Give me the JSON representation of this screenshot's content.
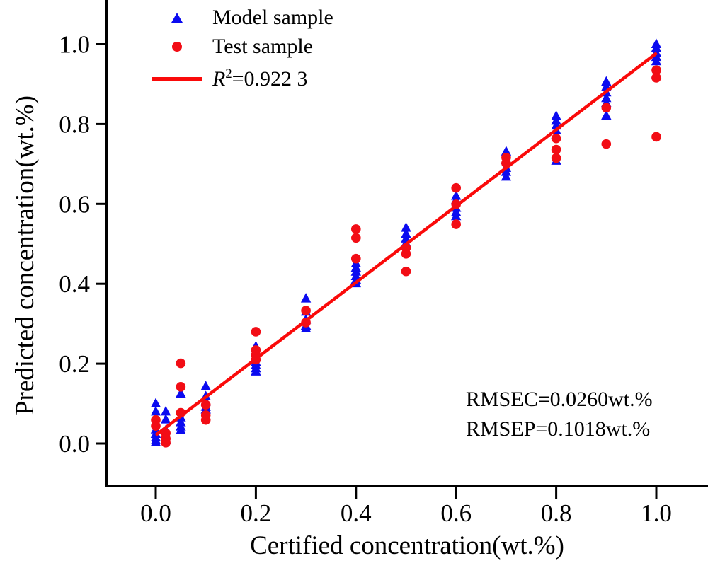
{
  "legend": {
    "model_label": "Model sample",
    "test_label": "Test sample",
    "r2_prefix": "R",
    "r2_sup": "2",
    "r2_rest": "=0.922 3"
  },
  "annotations": {
    "rmsec": "RMSEC=0.0260wt.%",
    "rmsep": "RMSEP=0.1018wt.%"
  },
  "colors": {
    "model_marker": "#0b0bf0",
    "test_marker": "#f20d15",
    "fit_line": "#fa0a0a",
    "axis": "#000000"
  },
  "chart_data": {
    "type": "scatter",
    "title": "",
    "xlabel": "Certified concentration(wt.%)",
    "ylabel": "Predicted concentration(wt.%)",
    "xlim": [
      -0.1,
      1.1
    ],
    "ylim": [
      -0.11,
      1.11
    ],
    "grid": false,
    "legend_position": "upper-left",
    "x_ticks": [
      0.0,
      0.2,
      0.4,
      0.6,
      0.8,
      1.0
    ],
    "x_tick_labels": [
      "0.0",
      "0.2",
      "0.4",
      "0.6",
      "0.8",
      "1.0"
    ],
    "y_ticks": [
      0.0,
      0.2,
      0.4,
      0.6,
      0.8,
      1.0
    ],
    "y_tick_labels": [
      "0.0",
      "0.2",
      "0.4",
      "0.6",
      "0.8",
      "1.0"
    ],
    "fit_line": {
      "r2": 0.9223,
      "x": [
        0.0,
        1.001
      ],
      "y": [
        0.021,
        0.978
      ]
    },
    "series": [
      {
        "name": "Model sample",
        "marker": "triangle",
        "color": "#0b0bf0",
        "points": [
          [
            0.0,
            0.1
          ],
          [
            0.0,
            0.08
          ],
          [
            0.0,
            0.035
          ],
          [
            0.0,
            0.024
          ],
          [
            0.0,
            0.015
          ],
          [
            0.0,
            0.008
          ],
          [
            0.0,
            0.003
          ],
          [
            0.02,
            0.08
          ],
          [
            0.02,
            0.06
          ],
          [
            0.02,
            0.033
          ],
          [
            0.02,
            0.02
          ],
          [
            0.02,
            0.009
          ],
          [
            0.05,
            0.125
          ],
          [
            0.05,
            0.065
          ],
          [
            0.05,
            0.053
          ],
          [
            0.05,
            0.042
          ],
          [
            0.05,
            0.033
          ],
          [
            0.1,
            0.143
          ],
          [
            0.1,
            0.118
          ],
          [
            0.1,
            0.105
          ],
          [
            0.1,
            0.092
          ],
          [
            0.1,
            0.085
          ],
          [
            0.2,
            0.243
          ],
          [
            0.2,
            0.204
          ],
          [
            0.2,
            0.196
          ],
          [
            0.2,
            0.188
          ],
          [
            0.2,
            0.18
          ],
          [
            0.3,
            0.363
          ],
          [
            0.3,
            0.33
          ],
          [
            0.3,
            0.31
          ],
          [
            0.3,
            0.295
          ],
          [
            0.3,
            0.288
          ],
          [
            0.4,
            0.451
          ],
          [
            0.4,
            0.44
          ],
          [
            0.4,
            0.43
          ],
          [
            0.4,
            0.419
          ],
          [
            0.4,
            0.41
          ],
          [
            0.4,
            0.401
          ],
          [
            0.5,
            0.54
          ],
          [
            0.5,
            0.525
          ],
          [
            0.5,
            0.513
          ],
          [
            0.5,
            0.502
          ],
          [
            0.6,
            0.62
          ],
          [
            0.6,
            0.61
          ],
          [
            0.6,
            0.59
          ],
          [
            0.6,
            0.579
          ],
          [
            0.6,
            0.569
          ],
          [
            0.7,
            0.731
          ],
          [
            0.7,
            0.71
          ],
          [
            0.7,
            0.69
          ],
          [
            0.7,
            0.68
          ],
          [
            0.7,
            0.668
          ],
          [
            0.8,
            0.82
          ],
          [
            0.8,
            0.808
          ],
          [
            0.8,
            0.796
          ],
          [
            0.8,
            0.784
          ],
          [
            0.8,
            0.773
          ],
          [
            0.8,
            0.708
          ],
          [
            0.9,
            0.906
          ],
          [
            0.9,
            0.893
          ],
          [
            0.9,
            0.879
          ],
          [
            0.9,
            0.865
          ],
          [
            0.9,
            0.853
          ],
          [
            0.9,
            0.821
          ],
          [
            1.0,
            1.0
          ],
          [
            1.0,
            0.991
          ],
          [
            1.0,
            0.978
          ],
          [
            1.0,
            0.968
          ],
          [
            1.0,
            0.957
          ],
          [
            1.0,
            0.925
          ]
        ]
      },
      {
        "name": "Test sample",
        "marker": "circle",
        "color": "#f20d15",
        "points": [
          [
            0.0,
            0.059
          ],
          [
            0.0,
            0.044
          ],
          [
            0.02,
            0.026
          ],
          [
            0.02,
            0.012
          ],
          [
            0.02,
            0.002
          ],
          [
            0.05,
            0.201
          ],
          [
            0.05,
            0.142
          ],
          [
            0.05,
            0.077
          ],
          [
            0.1,
            0.097
          ],
          [
            0.1,
            0.071
          ],
          [
            0.1,
            0.059
          ],
          [
            0.2,
            0.28
          ],
          [
            0.2,
            0.234
          ],
          [
            0.2,
            0.222
          ],
          [
            0.2,
            0.21
          ],
          [
            0.3,
            0.333
          ],
          [
            0.3,
            0.303
          ],
          [
            0.4,
            0.537
          ],
          [
            0.4,
            0.515
          ],
          [
            0.4,
            0.463
          ],
          [
            0.5,
            0.49
          ],
          [
            0.5,
            0.475
          ],
          [
            0.5,
            0.431
          ],
          [
            0.6,
            0.64
          ],
          [
            0.6,
            0.599
          ],
          [
            0.6,
            0.549
          ],
          [
            0.7,
            0.716
          ],
          [
            0.7,
            0.702
          ],
          [
            0.8,
            0.764
          ],
          [
            0.8,
            0.736
          ],
          [
            0.8,
            0.715
          ],
          [
            0.9,
            0.841
          ],
          [
            0.9,
            0.75
          ],
          [
            1.0,
            0.935
          ],
          [
            1.0,
            0.916
          ],
          [
            1.0,
            0.768
          ]
        ]
      }
    ]
  }
}
